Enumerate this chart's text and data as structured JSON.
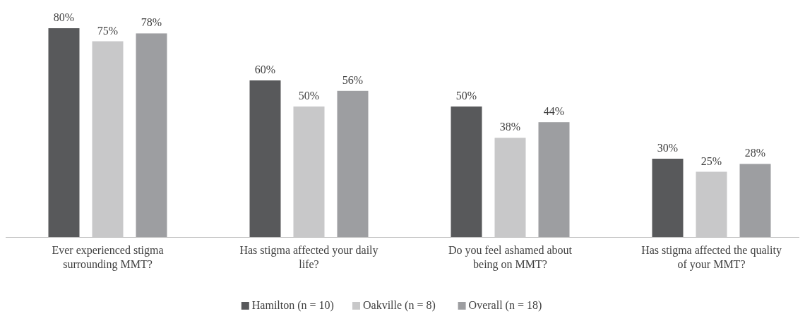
{
  "chart_data": {
    "type": "bar",
    "categories": [
      "Ever experienced stigma\nsurrounding MMT?",
      "Has stigma affected your daily\nlife?",
      "Do you feel ashamed about\nbeing on MMT?",
      "Has stigma affected the quality\nof your MMT?"
    ],
    "series": [
      {
        "name": "Hamilton (n = 10)",
        "color": "#58595b",
        "values": [
          80,
          60,
          50,
          30
        ],
        "value_labels": [
          "80%",
          "60%",
          "50%",
          "30%"
        ]
      },
      {
        "name": "Oakville (n = 8)",
        "color": "#c8c8c9",
        "values": [
          75,
          50,
          38,
          25
        ],
        "value_labels": [
          "75%",
          "50%",
          "38%",
          "25%"
        ]
      },
      {
        "name": "Overall (n = 18)",
        "color": "#9d9ea1",
        "values": [
          78,
          56,
          44,
          28
        ],
        "value_labels": [
          "78%",
          "56%",
          "44%",
          "28%"
        ]
      }
    ],
    "legend": "bottom"
  }
}
